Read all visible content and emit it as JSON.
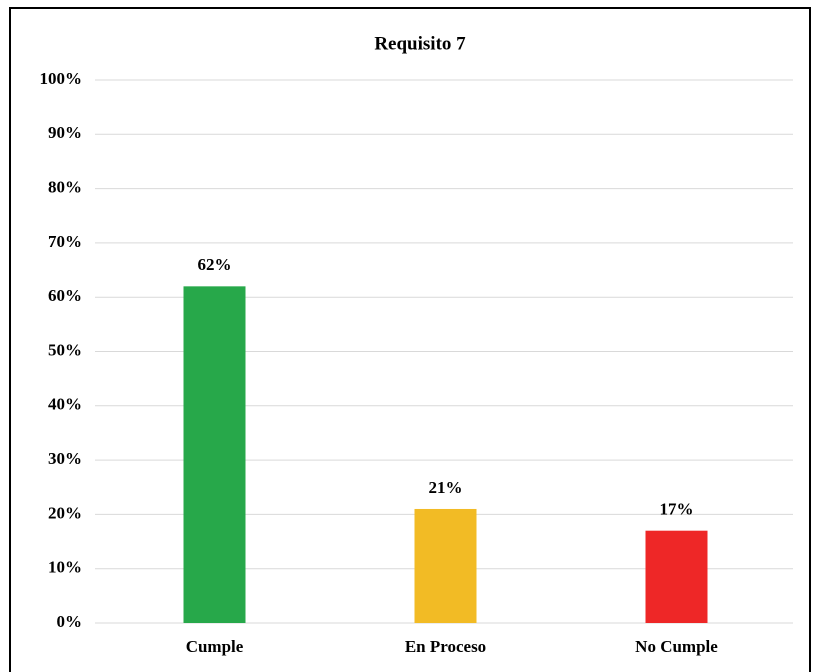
{
  "chart_data": {
    "type": "bar",
    "title": "Requisito 7",
    "categories": [
      "Cumple",
      "En Proceso",
      "No Cumple"
    ],
    "values": [
      62,
      21,
      17
    ],
    "value_labels": [
      "62%",
      "21%",
      "17%"
    ],
    "colors": [
      "#27a84a",
      "#f2bb25",
      "#ee2727"
    ],
    "ylim": [
      0,
      100
    ],
    "yticks": [
      {
        "value": 0,
        "label": "0%"
      },
      {
        "value": 10,
        "label": "10%"
      },
      {
        "value": 20,
        "label": "20%"
      },
      {
        "value": 30,
        "label": "30%"
      },
      {
        "value": 40,
        "label": "40%"
      },
      {
        "value": 50,
        "label": "50%"
      },
      {
        "value": 60,
        "label": "60%"
      },
      {
        "value": 70,
        "label": "70%"
      },
      {
        "value": 80,
        "label": "80%"
      },
      {
        "value": 90,
        "label": "90%"
      },
      {
        "value": 100,
        "label": "100%"
      }
    ],
    "grid": true
  }
}
